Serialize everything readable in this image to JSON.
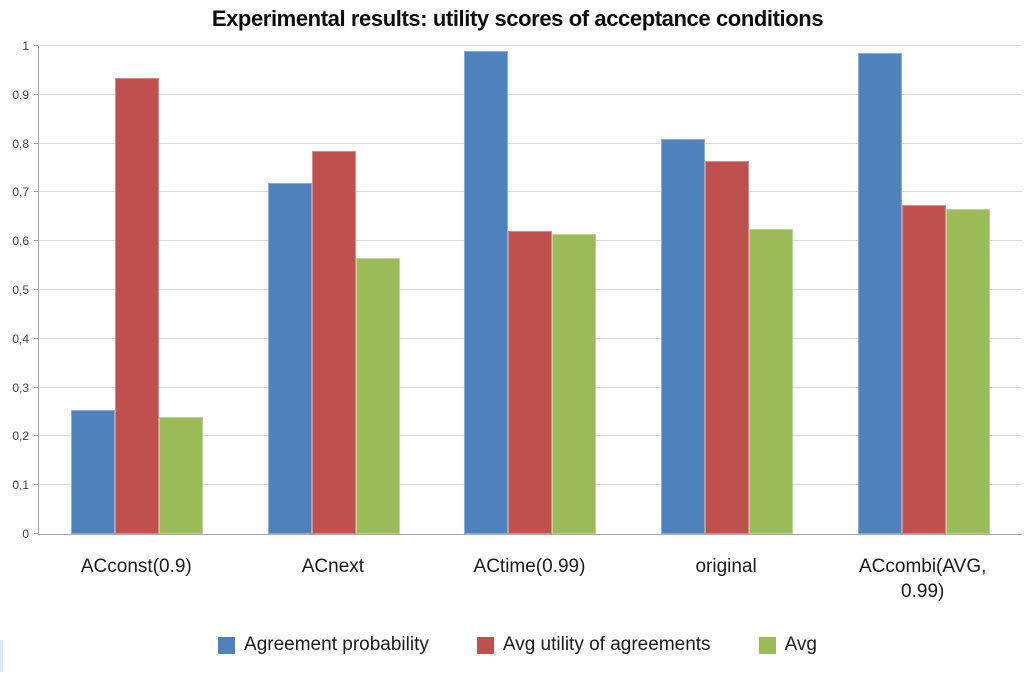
{
  "chart_data": {
    "type": "bar",
    "title": "Experimental results: utility scores of acceptance conditions",
    "categories": [
      "ACconst(0.9)",
      "ACnext",
      "ACtime(0.99)",
      "original",
      "ACcombi(AVG, 0.99)"
    ],
    "series": [
      {
        "name": "Agreement probability",
        "color": "#4F81BD",
        "values": [
          0.255,
          0.72,
          0.99,
          0.81,
          0.985
        ]
      },
      {
        "name": "Avg utility of agreements",
        "color": "#C0504D",
        "values": [
          0.935,
          0.785,
          0.62,
          0.765,
          0.675
        ]
      },
      {
        "name": "Avg",
        "color": "#9BBB59",
        "values": [
          0.24,
          0.565,
          0.615,
          0.625,
          0.665
        ]
      }
    ],
    "ylim": [
      0,
      1
    ],
    "yticks": [
      {
        "v": 0.0,
        "label": "0"
      },
      {
        "v": 0.1,
        "label": "0,1"
      },
      {
        "v": 0.2,
        "label": "0,2"
      },
      {
        "v": 0.3,
        "label": "0,3"
      },
      {
        "v": 0.4,
        "label": "0,4"
      },
      {
        "v": 0.5,
        "label": "0,5"
      },
      {
        "v": 0.6,
        "label": "0,6"
      },
      {
        "v": 0.7,
        "label": "0,7"
      },
      {
        "v": 0.8,
        "label": "0,8"
      },
      {
        "v": 0.9,
        "label": "0,9"
      },
      {
        "v": 1.0,
        "label": "1"
      }
    ],
    "grid": true,
    "legend_position": "bottom"
  },
  "colors": {
    "gridline": "#d9d9d9",
    "axis": "#a6a6a6",
    "ytick_text": "#404040",
    "label_text": "#1a1a1a",
    "edge_artifact": "#dcebf7"
  }
}
